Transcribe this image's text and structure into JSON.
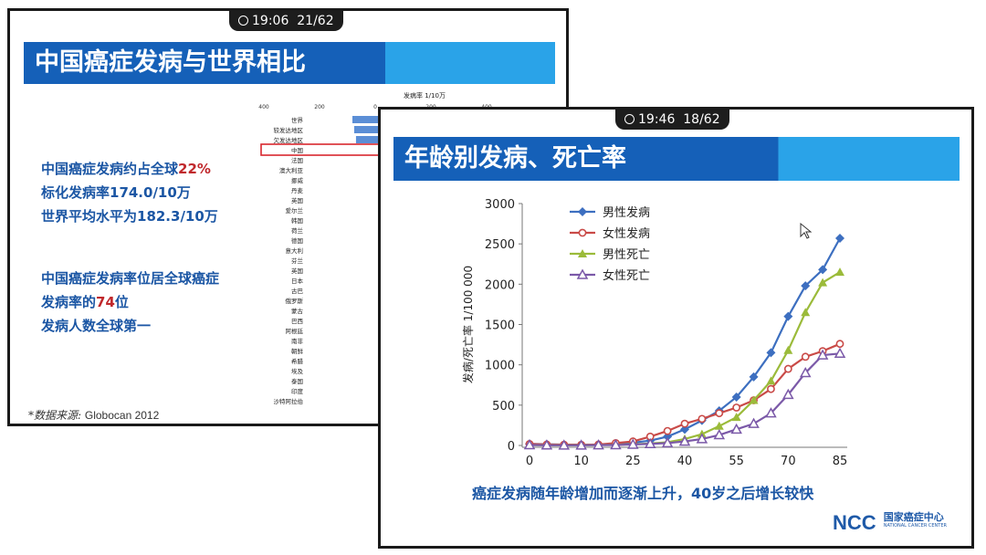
{
  "slide_a": {
    "time": "19:06",
    "page": "21/62",
    "title": "中国癌症发病与世界相比",
    "bullets_group1": [
      {
        "text": "中国癌症发病约占全球",
        "highlight": "22%"
      },
      {
        "text": "标化发病率174.0/10万",
        "highlight": ""
      },
      {
        "text": "世界平均水平为182.3/10万",
        "highlight": ""
      }
    ],
    "bullets_group2": [
      {
        "text": "中国癌症发病率位居全球癌症",
        "highlight": ""
      },
      {
        "text": "发病率的",
        "highlight": "74",
        "suffix": "位"
      },
      {
        "text": "发病人数全球第一",
        "highlight": ""
      }
    ],
    "source_label": "*数据来源:",
    "source_value": "Globocan 2012",
    "chart_header": "发病率  1/10万",
    "axis_ticks": [
      "400",
      "200",
      "0",
      "200",
      "400"
    ],
    "countries": [
      "世界",
      "较发达地区",
      "欠发达地区",
      "中国",
      "法国",
      "澳大利亚",
      "挪威",
      "丹麦",
      "英国",
      "爱尔兰",
      "韩国",
      "荷兰",
      "德国",
      "意大利",
      "芬兰",
      "英国",
      "日本",
      "古巴",
      "俄罗斯",
      "蒙古",
      "巴西",
      "阿根廷",
      "南非",
      "朝鲜",
      "希腊",
      "埃及",
      "泰国",
      "印度",
      "沙特阿拉伯"
    ],
    "highlight_index": 3,
    "highlight_color": "#d9272e",
    "bar_color": "#5b8ed6"
  },
  "slide_b": {
    "time": "19:46",
    "page": "18/62",
    "title": "年龄别发病、死亡率",
    "caption": "癌症发病随年龄增加而逐渐上升，40岁之后增长较快",
    "logo_mark": "NCC",
    "logo_cn": "国家癌症中心",
    "logo_en": "NATIONAL CANCER CENTER"
  },
  "chart_data": {
    "type": "line",
    "ylabel": "发病/死亡率    1/100 000",
    "xlabel": "",
    "x_ticks": [
      0,
      10,
      25,
      40,
      55,
      70,
      85
    ],
    "y_ticks": [
      0,
      500,
      1000,
      1500,
      2000,
      2500,
      3000
    ],
    "ylim": [
      0,
      3000
    ],
    "grid": false,
    "legend": "top-left",
    "x": [
      "0",
      "1",
      "5",
      "10",
      "15",
      "20",
      "25",
      "30",
      "35",
      "40",
      "45",
      "50",
      "55",
      "60",
      "65",
      "70",
      "75",
      "80",
      "85"
    ],
    "series": [
      {
        "name": "男性发病",
        "color": "#3d6fc0",
        "marker": "diamond",
        "values": [
          20,
          15,
          10,
          8,
          12,
          20,
          35,
          60,
          110,
          200,
          310,
          430,
          600,
          850,
          1150,
          1600,
          1980,
          2180,
          2570
        ]
      },
      {
        "name": "女性发病",
        "color": "#c94a47",
        "marker": "circle",
        "values": [
          18,
          12,
          10,
          8,
          12,
          30,
          50,
          110,
          180,
          270,
          330,
          400,
          470,
          560,
          700,
          950,
          1100,
          1170,
          1260
        ]
      },
      {
        "name": "男性死亡",
        "color": "#9bbb3a",
        "marker": "triangle",
        "values": [
          5,
          3,
          2,
          2,
          5,
          8,
          15,
          25,
          40,
          80,
          140,
          240,
          350,
          560,
          800,
          1180,
          1650,
          2020,
          2150
        ]
      },
      {
        "name": "女性死亡",
        "color": "#7b59a8",
        "marker": "triangle-open",
        "values": [
          5,
          3,
          2,
          2,
          4,
          6,
          12,
          20,
          30,
          50,
          80,
          130,
          200,
          270,
          400,
          630,
          900,
          1120,
          1140
        ]
      }
    ]
  }
}
